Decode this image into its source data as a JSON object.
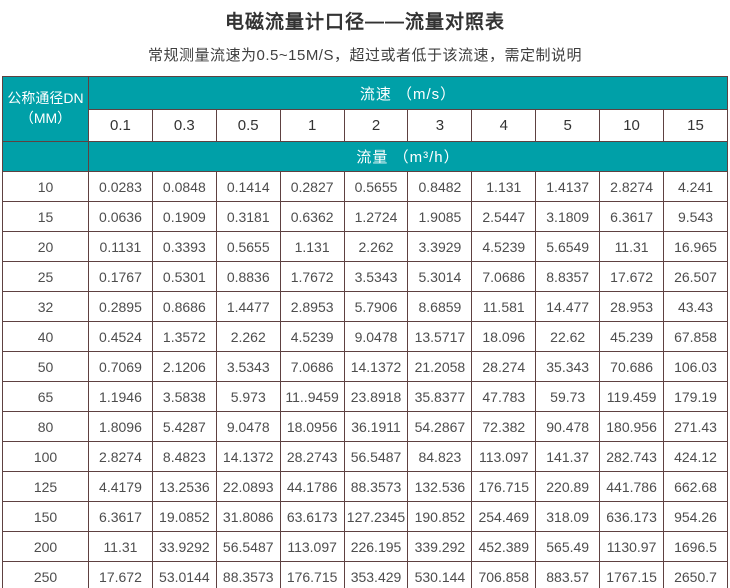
{
  "page": {
    "title": "电磁流量计口径——流量对照表",
    "subtitle": "常规测量流速为0.5~15M/S，超过或者低于该流速，需定制说明"
  },
  "colors": {
    "header_teal": "#00a0a8",
    "border": "#5e4141",
    "title_text": "#333333",
    "data_text": "#4d4d4d"
  },
  "table": {
    "corner_header_line1": "公称通径DN",
    "corner_header_line2": "（MM）",
    "velocity_header": "流速 （m/s）",
    "flow_header": "流量 （m³/h）",
    "velocities": [
      "0.1",
      "0.3",
      "0.5",
      "1",
      "2",
      "3",
      "4",
      "5",
      "10",
      "15"
    ],
    "rows": [
      {
        "dn": "10",
        "values": [
          "0.0283",
          "0.0848",
          "0.1414",
          "0.2827",
          "0.5655",
          "0.8482",
          "1.131",
          "1.4137",
          "2.8274",
          "4.241"
        ]
      },
      {
        "dn": "15",
        "values": [
          "0.0636",
          "0.1909",
          "0.3181",
          "0.6362",
          "1.2724",
          "1.9085",
          "2.5447",
          "3.1809",
          "6.3617",
          "9.543"
        ]
      },
      {
        "dn": "20",
        "values": [
          "0.1131",
          "0.3393",
          "0.5655",
          "1.131",
          "2.262",
          "3.3929",
          "4.5239",
          "5.6549",
          "11.31",
          "16.965"
        ]
      },
      {
        "dn": "25",
        "values": [
          "0.1767",
          "0.5301",
          "0.8836",
          "1.7672",
          "3.5343",
          "5.3014",
          "7.0686",
          "8.8357",
          "17.672",
          "26.507"
        ]
      },
      {
        "dn": "32",
        "values": [
          "0.2895",
          "0.8686",
          "1.4477",
          "2.8953",
          "5.7906",
          "8.6859",
          "11.581",
          "14.477",
          "28.953",
          "43.43"
        ]
      },
      {
        "dn": "40",
        "values": [
          "0.4524",
          "1.3572",
          "2.262",
          "4.5239",
          "9.0478",
          "13.5717",
          "18.096",
          "22.62",
          "45.239",
          "67.858"
        ]
      },
      {
        "dn": "50",
        "values": [
          "0.7069",
          "2.1206",
          "3.5343",
          "7.0686",
          "14.1372",
          "21.2058",
          "28.274",
          "35.343",
          "70.686",
          "106.03"
        ]
      },
      {
        "dn": "65",
        "values": [
          "1.1946",
          "3.5838",
          "5.973",
          "11..9459",
          "23.8918",
          "35.8377",
          "47.783",
          "59.73",
          "119.459",
          "179.19"
        ]
      },
      {
        "dn": "80",
        "values": [
          "1.8096",
          "5.4287",
          "9.0478",
          "18.0956",
          "36.1911",
          "54.2867",
          "72.382",
          "90.478",
          "180.956",
          "271.43"
        ]
      },
      {
        "dn": "100",
        "values": [
          "2.8274",
          "8.4823",
          "14.1372",
          "28.2743",
          "56.5487",
          "84.823",
          "113.097",
          "141.37",
          "282.743",
          "424.12"
        ]
      },
      {
        "dn": "125",
        "values": [
          "4.4179",
          "13.2536",
          "22.0893",
          "44.1786",
          "88.3573",
          "132.536",
          "176.715",
          "220.89",
          "441.786",
          "662.68"
        ]
      },
      {
        "dn": "150",
        "values": [
          "6.3617",
          "19.0852",
          "31.8086",
          "63.6173",
          "127.2345",
          "190.852",
          "254.469",
          "318.09",
          "636.173",
          "954.26"
        ]
      },
      {
        "dn": "200",
        "values": [
          "11.31",
          "33.9292",
          "56.5487",
          "113.097",
          "226.195",
          "339.292",
          "452.389",
          "565.49",
          "1130.97",
          "1696.5"
        ]
      },
      {
        "dn": "250",
        "values": [
          "17.672",
          "53.0144",
          "88.3573",
          "176.715",
          "353.429",
          "530.144",
          "706.858",
          "883.57",
          "1767.15",
          "2650.7"
        ]
      }
    ]
  }
}
